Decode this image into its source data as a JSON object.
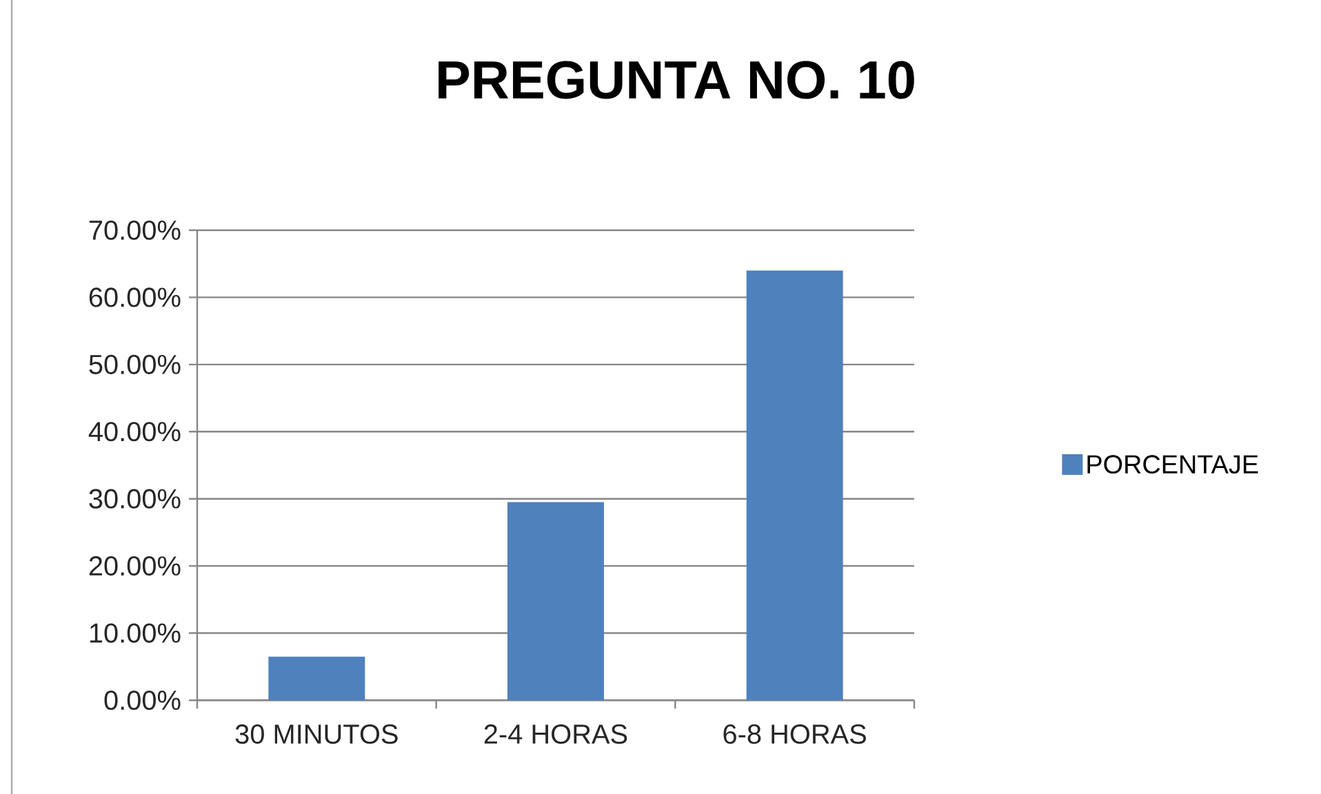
{
  "chart_data": {
    "type": "bar",
    "title": "PREGUNTA NO. 10",
    "categories": [
      "30 MINUTOS",
      "2-4 HORAS",
      "6-8 HORAS"
    ],
    "series": [
      {
        "name": "PORCENTAJE",
        "color": "#4f81bd",
        "values": [
          6.5,
          29.5,
          64
        ]
      }
    ],
    "ylim": [
      0,
      70
    ],
    "yticks": [
      {
        "value": 0,
        "label": "0.00%"
      },
      {
        "value": 10,
        "label": "10.00%"
      },
      {
        "value": 20,
        "label": "20.00%"
      },
      {
        "value": 30,
        "label": "30.00%"
      },
      {
        "value": 40,
        "label": "40.00%"
      },
      {
        "value": 50,
        "label": "50.00%"
      },
      {
        "value": 60,
        "label": "60.00%"
      },
      {
        "value": 70,
        "label": "70.00%"
      }
    ],
    "grid": "y",
    "legend": "right"
  }
}
